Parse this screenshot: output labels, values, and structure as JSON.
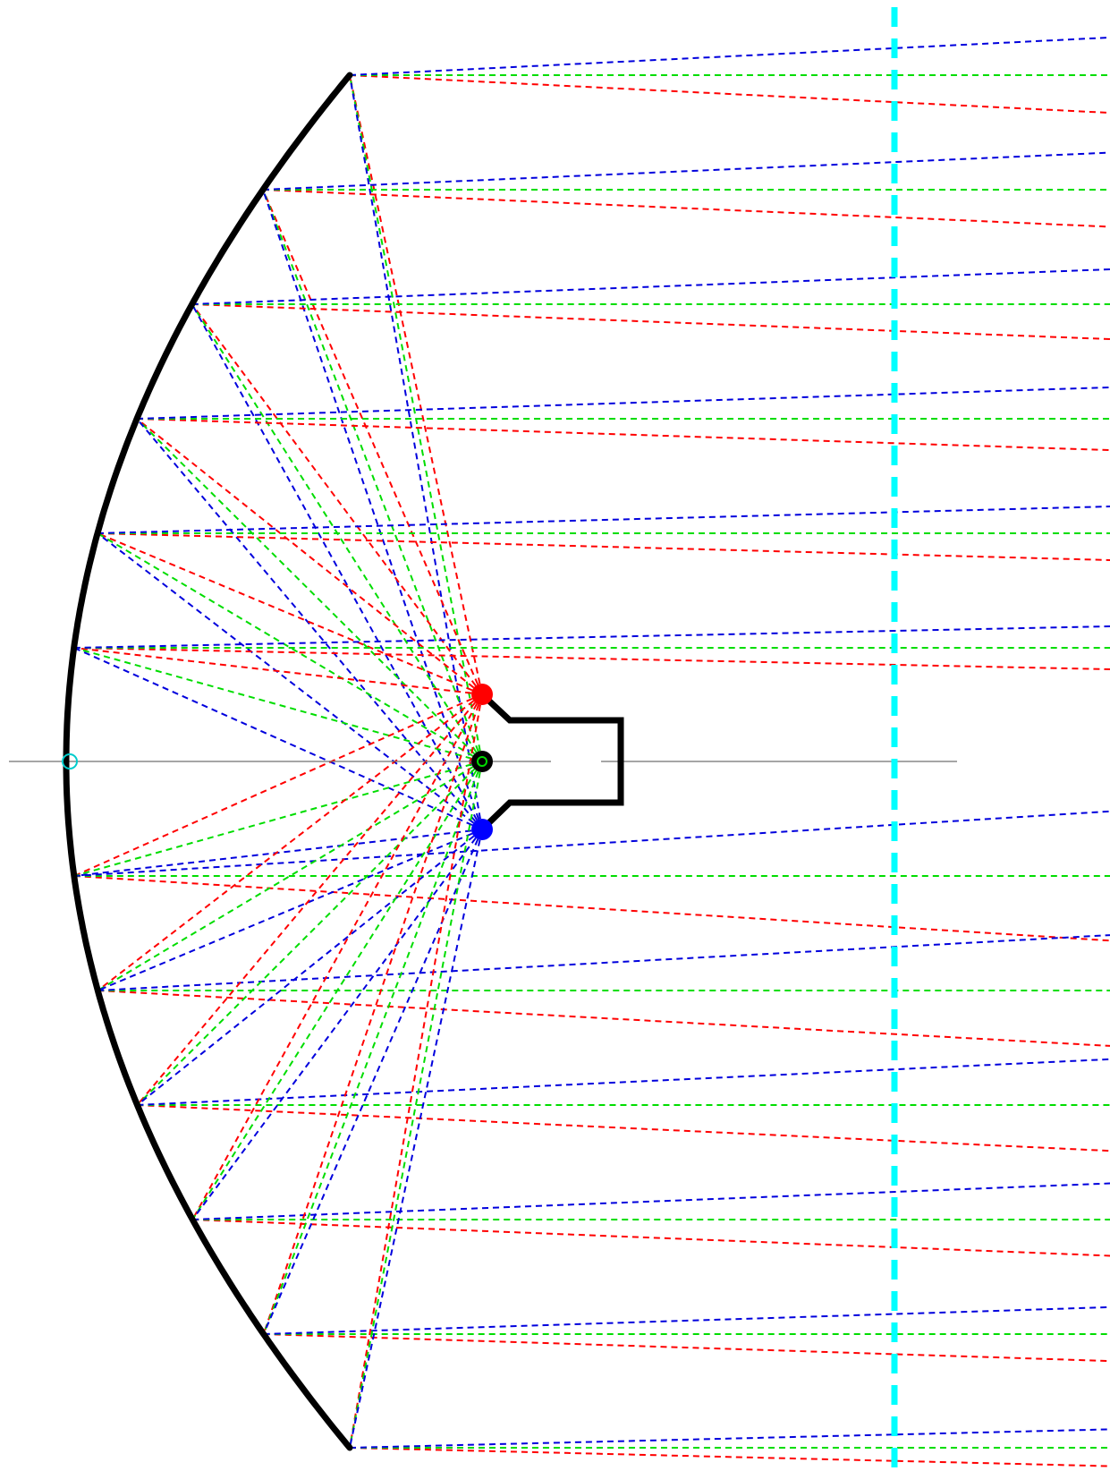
{
  "diagram": {
    "title": "",
    "colors": {
      "background": "#ffffff",
      "mirror": "#000000",
      "axis": "#707070",
      "reference_line": "#00ffff",
      "ray_red": "#ff0000",
      "ray_green": "#00dd00",
      "ray_blue": "#0000dd"
    },
    "focal_points": [
      {
        "name": "red-focus",
        "color": "#ff0000"
      },
      {
        "name": "green-focus",
        "color": "#000000"
      },
      {
        "name": "blue-focus",
        "color": "#0000ff"
      }
    ],
    "mirror_points_count": 13
  }
}
